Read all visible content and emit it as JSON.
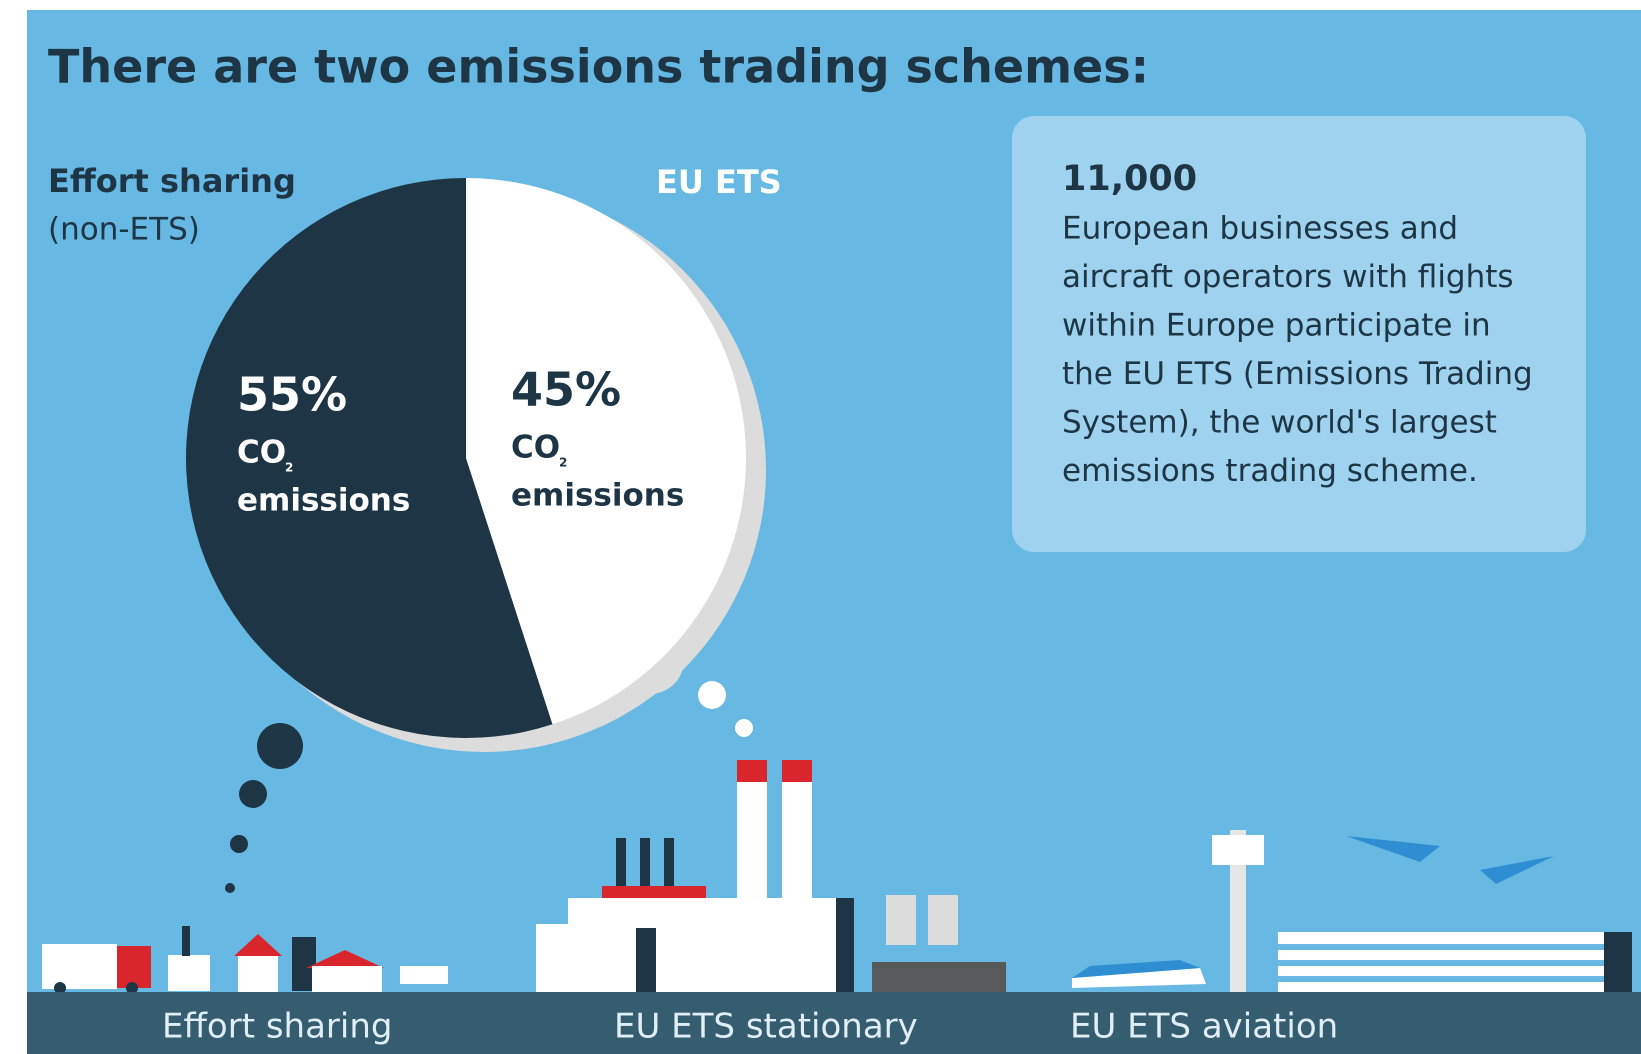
{
  "chart_data": {
    "type": "pie",
    "title": "There are two emissions trading schemes:",
    "categories": [
      "Effort sharing",
      "EU ETS"
    ],
    "category_sublabels": [
      "(non-ETS)"
    ],
    "values": [
      55,
      45
    ],
    "value_labels": [
      "55%",
      "45%"
    ],
    "colors": [
      "#1d3545",
      "#ffffff"
    ],
    "label_colors": [
      "#1d3545",
      "#ffffff"
    ],
    "slice_text": {
      "formula": "CO",
      "subscript": "2",
      "caption": "emissions"
    },
    "slice_text_colors": [
      "#ffffff",
      "#1d3545"
    ],
    "direction": "counterclockwise"
  },
  "info": {
    "number": "11,000",
    "lines": [
      "European businesses and",
      "aircraft operators with flights",
      "within Europe participate in",
      "the EU ETS (Emissions Trading",
      "System), the world's largest",
      "emissions trading scheme."
    ]
  },
  "sectors": [
    "Effort sharing",
    "EU ETS stationary",
    "EU ETS aviation"
  ]
}
